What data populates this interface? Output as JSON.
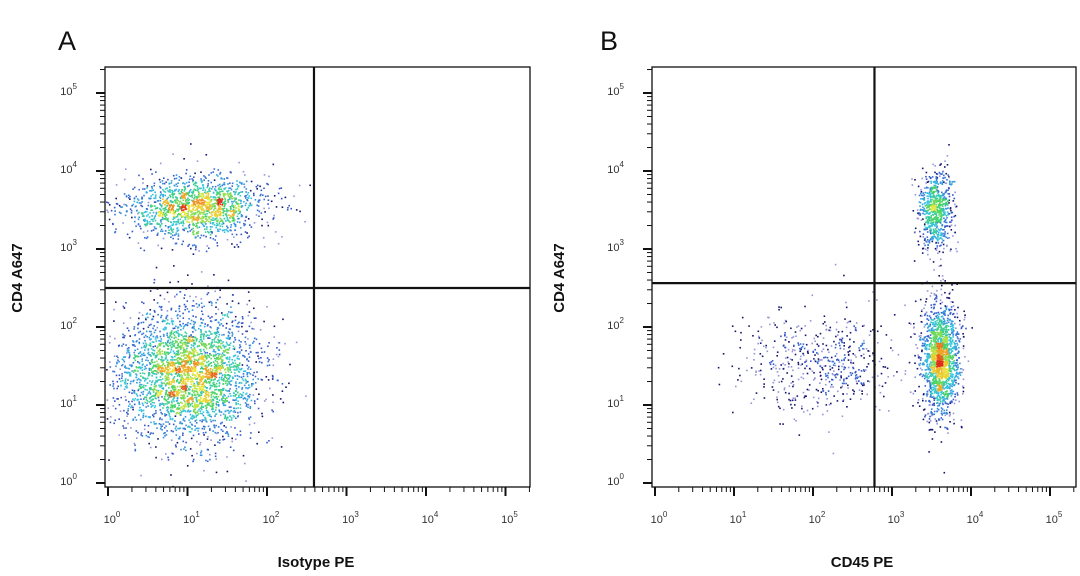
{
  "chart_data": [
    {
      "type": "scatter",
      "subtype": "flow-cytometry-density-dot-plot",
      "panel_label": "A",
      "xlabel": "Isotype PE",
      "ylabel": "CD4 A647",
      "x_scale": "log",
      "y_scale": "log",
      "xlim": [
        1,
        200000
      ],
      "ylim": [
        1,
        200000
      ],
      "x_ticks": [
        "10^0",
        "10^1",
        "10^2",
        "10^3",
        "10^4",
        "10^5"
      ],
      "y_ticks": [
        "10^0",
        "10^1",
        "10^2",
        "10^3",
        "10^4",
        "10^5"
      ],
      "quadrant_gate": {
        "x": 390,
        "y": 316
      },
      "color_map": [
        "#1a1a8c",
        "#3a5fd0",
        "#35c4e6",
        "#3fd26a",
        "#e8e838",
        "#f08a20",
        "#e02a1a"
      ],
      "populations": [
        {
          "center": [
            12,
            3500
          ],
          "spread_log10": [
            0.45,
            0.2
          ],
          "events": 1500
        },
        {
          "center": [
            10,
            25
          ],
          "spread_log10": [
            0.45,
            0.42
          ],
          "events": 3000
        }
      ],
      "grid": false,
      "legend": "none"
    },
    {
      "type": "scatter",
      "subtype": "flow-cytometry-density-dot-plot",
      "panel_label": "B",
      "xlabel": "CD45 PE",
      "ylabel": "CD4 A647",
      "x_scale": "log",
      "y_scale": "log",
      "xlim": [
        1,
        200000
      ],
      "ylim": [
        1,
        200000
      ],
      "x_ticks": [
        "10^0",
        "10^1",
        "10^2",
        "10^3",
        "10^4",
        "10^5"
      ],
      "y_ticks": [
        "10^0",
        "10^1",
        "10^2",
        "10^3",
        "10^4",
        "10^5"
      ],
      "quadrant_gate": {
        "x": 600,
        "y": 365
      },
      "color_map": [
        "#1a1a8c",
        "#3a5fd0",
        "#35c4e6",
        "#3fd26a",
        "#e8e838",
        "#f08a20",
        "#e02a1a"
      ],
      "populations": [
        {
          "center": [
            3500,
            3200
          ],
          "spread_log10": [
            0.11,
            0.25
          ],
          "events": 700
        },
        {
          "center": [
            4000,
            40
          ],
          "spread_log10": [
            0.12,
            0.36
          ],
          "events": 1600
        },
        {
          "center": [
            120,
            35
          ],
          "spread_log10": [
            0.5,
            0.33
          ],
          "events": 550
        }
      ],
      "grid": false,
      "legend": "none"
    }
  ]
}
